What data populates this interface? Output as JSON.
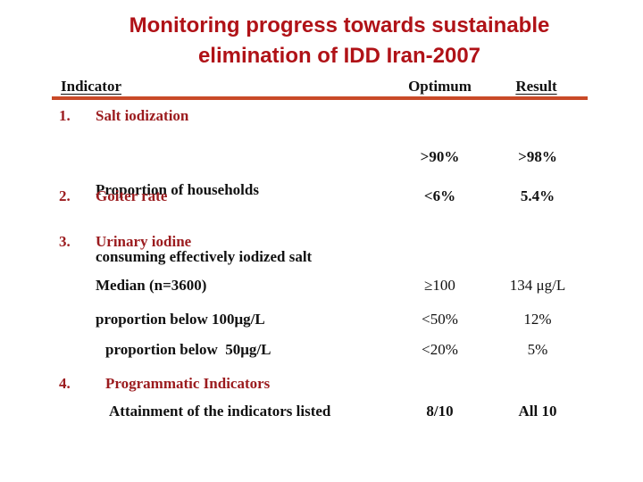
{
  "slide": {
    "title_line1": "Monitoring progress towards sustainable",
    "title_line2": "elimination of IDD Iran-2007",
    "colors": {
      "title_red": "#B01217",
      "item_red": "#9B1B1E",
      "rule_orange": "#C94A28",
      "body_text": "#111111"
    }
  },
  "table": {
    "headers": {
      "indicator": "Indicator",
      "optimum": "Optimum",
      "result": "Result"
    },
    "items": [
      {
        "num": "1.",
        "title": "Salt iodization",
        "subrows": [
          {
            "label_line1": "Proportion of households",
            "label_line2": "consuming effectively iodized salt",
            "optimum": ">90%",
            "result": ">98%"
          }
        ]
      },
      {
        "num": "2.",
        "title": "Goiter rate",
        "optimum": "<6%",
        "result": "5.4%"
      },
      {
        "num": "3.",
        "title": "Urinary iodine",
        "subrows": [
          {
            "label": "Median (n=3600)",
            "optimum": "≥100",
            "result": "134 μg/L"
          },
          {
            "label": "proportion below 100μg/L",
            "optimum": "<50%",
            "result": "12%"
          },
          {
            "label": "proportion below  50μg/L",
            "optimum": "<20%",
            "result": "5%"
          }
        ]
      },
      {
        "num": "4.",
        "title": "Programmatic Indicators",
        "subrows": [
          {
            "label": "Attainment of the indicators listed",
            "optimum": "8/10",
            "result": "All 10"
          }
        ]
      }
    ]
  }
}
